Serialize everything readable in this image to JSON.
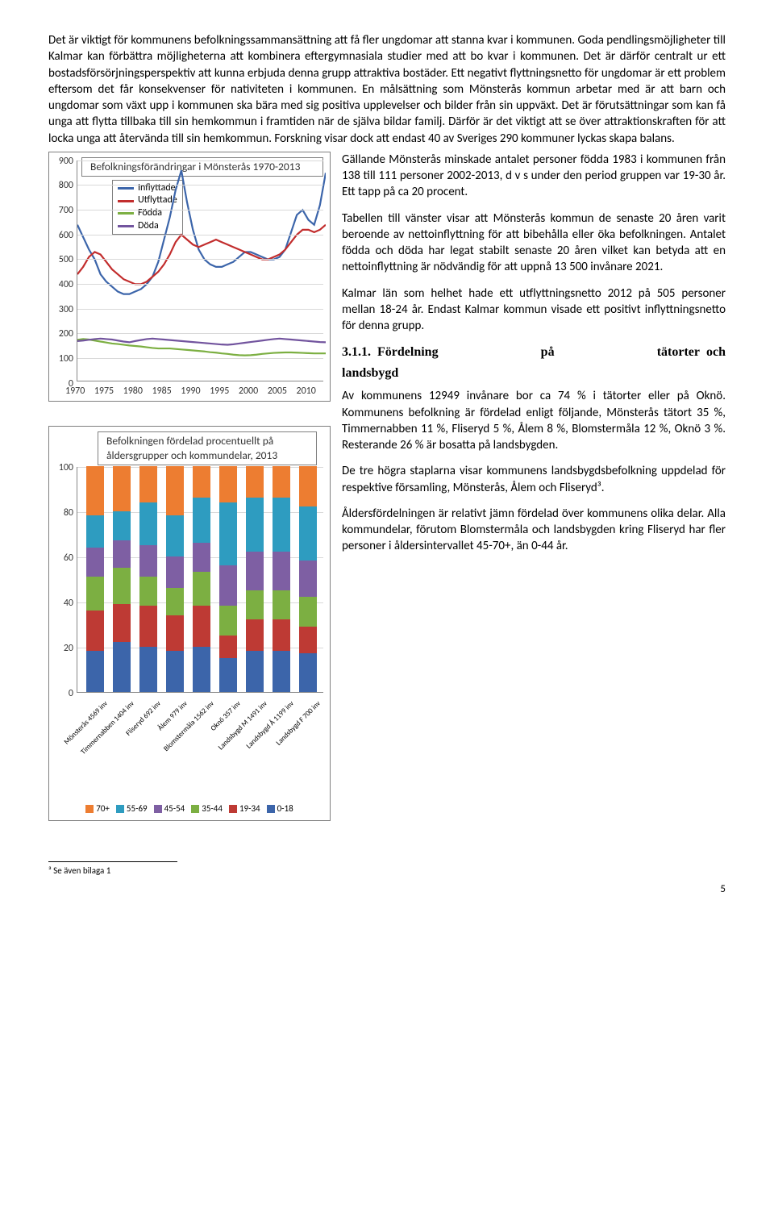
{
  "intro": "Det är viktigt för kommunens befolkningssammansättning att få fler ungdomar att stanna kvar i kommunen. Goda pendlingsmöjligheter till Kalmar kan förbättra möjligheterna att kombinera eftergymnasiala studier med att bo kvar i kommunen. Det är därför centralt ur ett bostadsförsörjningsperspektiv att kunna erbjuda denna grupp attraktiva bostäder. Ett negativt flyttningsnetto för ungdomar är ett problem eftersom det får konsekvenser för nativiteten i kommunen. En målsättning som Mönsterås kommun arbetar med är att barn och ungdomar som växt upp i kommunen ska bära med sig positiva upplevelser och bilder från sin uppväxt. Det är förutsättningar som kan få unga att flytta tillbaka till sin hemkommun i framtiden när de själva bildar familj. Därför är det viktigt att se över attraktionskraften för att locka unga att återvända till sin hemkommun. Forskning visar dock att endast 40 av Sveriges 290 kommuner lyckas skapa balans.",
  "right_paras": {
    "p1": "Gällande Mönsterås minskade antalet personer födda 1983 i kommunen från 138 till 111 personer 2002-2013, d v s under den period gruppen var 19-30 år. Ett tapp på ca 20 procent.",
    "p2": "Tabellen till vänster visar att Mönsterås kommun de senaste 20 åren varit beroende av nettoinflyttning för att bibehålla eller öka befolkningen. Antalet födda och döda har legat stabilt senaste 20 åren vilket kan betyda att en nettoinflyttning är nödvändig för att uppnå 13 500 invånare 2021.",
    "p3": "Kalmar län som helhet hade ett utflyttningsnetto 2012 på 505 personer mellan 18-24 år. Endast Kalmar kommun visade ett positivt inflyttningsnetto för denna grupp.",
    "heading_no": "3.1.1.",
    "heading_l": "Fördelning",
    "heading_m": "på",
    "heading_r1": "tätorter",
    "heading_r2": "och",
    "heading_lands": "landsbygd",
    "p4": "Av kommunens 12949 invånare bor ca 74 % i tätorter eller på Oknö. Kommunens befolkning är fördelad enligt följande, Mönsterås tätort 35 %, Timmernabben 11 %, Fliseryd 5 %, Ålem 8 %, Blomstermåla 12 %, Oknö 3 %. Resterande 26 % är bosatta på landsbygden.",
    "p5": "De tre högra staplarna visar kommunens landsbygdsbefolkning uppdelad för respektive församling, Mönsterås, Ålem och Fliseryd³.",
    "p6": "Åldersfördelningen är relativt jämn fördelad över kommunens olika delar. Alla kommundelar, förutom Blomstermåla och landsbygden kring Fliseryd har fler personer i åldersintervallet 45-70+, än 0-44 år."
  },
  "chart1": {
    "title": "Befolkningsförändringar i Mönsterås 1970-2013",
    "legend": [
      "Inflyttade",
      "Utflyttade",
      "Födda",
      "Döda"
    ],
    "colors": [
      "#3c65aa",
      "#c22d2d",
      "#7caf42",
      "#72549e"
    ],
    "ylim": [
      0,
      900
    ],
    "ytick_step": 100,
    "xticks": [
      "1970",
      "1975",
      "1980",
      "1985",
      "1990",
      "1995",
      "2000",
      "2005",
      "2010"
    ],
    "grid_color": "#d9d9d9",
    "background_color": "#ffffff",
    "series": {
      "inflyttade": [
        640,
        590,
        540,
        500,
        440,
        410,
        390,
        370,
        360,
        360,
        370,
        380,
        400,
        430,
        490,
        580,
        670,
        780,
        860,
        730,
        620,
        540,
        500,
        480,
        470,
        470,
        480,
        490,
        510,
        530,
        530,
        520,
        510,
        500,
        500,
        510,
        540,
        610,
        680,
        700,
        660,
        640,
        720,
        850
      ],
      "utflyttade": [
        440,
        470,
        510,
        530,
        520,
        490,
        460,
        440,
        420,
        410,
        400,
        400,
        410,
        430,
        450,
        480,
        520,
        570,
        600,
        580,
        560,
        550,
        560,
        570,
        580,
        570,
        560,
        550,
        540,
        530,
        520,
        510,
        500,
        500,
        510,
        520,
        540,
        570,
        600,
        620,
        620,
        610,
        620,
        640
      ],
      "fodda": [
        175,
        178,
        176,
        172,
        168,
        164,
        160,
        158,
        155,
        152,
        150,
        148,
        145,
        142,
        140,
        140,
        140,
        138,
        136,
        134,
        132,
        130,
        128,
        125,
        123,
        120,
        118,
        115,
        113,
        112,
        113,
        115,
        118,
        120,
        122,
        123,
        124,
        124,
        123,
        122,
        121,
        120,
        120,
        120
      ],
      "doda": [
        170,
        172,
        175,
        178,
        180,
        178,
        176,
        172,
        168,
        165,
        170,
        174,
        178,
        180,
        178,
        176,
        174,
        172,
        170,
        168,
        166,
        164,
        162,
        160,
        158,
        156,
        155,
        157,
        160,
        163,
        166,
        169,
        172,
        175,
        178,
        180,
        178,
        176,
        174,
        172,
        170,
        168,
        166,
        165
      ]
    }
  },
  "chart2": {
    "title": "Befolkningen fördelad  procentuellt på åldersgrupper och kommundelar, 2013",
    "ylim": [
      0,
      100
    ],
    "ytick_step": 20,
    "categories": [
      "Mönsterås 4569 inv",
      "Timmernabben 1404 inv",
      "Fliseryd 692 inv",
      "Ålem 979 inv",
      "Blomstermåla 1562 inv",
      "Oknö 357 inv",
      "Landsbygd M 1491 inv",
      "Landsbygd Å 1199 inv",
      "Landsbygd F 700 inv"
    ],
    "legend": [
      "70+",
      "55-69",
      "45-54",
      "35-44",
      "19-34",
      "0-18"
    ],
    "colors": {
      "70+": "#ed7d31",
      "55-69": "#2e9cc0",
      "45-54": "#7e5fa3",
      "35-44": "#7caf42",
      "19-34": "#be3a34",
      "0-18": "#3c65aa"
    },
    "stacks": [
      [
        22,
        14,
        13,
        15,
        18,
        18
      ],
      [
        20,
        13,
        12,
        16,
        17,
        22
      ],
      [
        16,
        19,
        14,
        13,
        18,
        20
      ],
      [
        22,
        18,
        14,
        12,
        16,
        18
      ],
      [
        14,
        20,
        13,
        15,
        18,
        20
      ],
      [
        16,
        28,
        18,
        13,
        10,
        15
      ],
      [
        14,
        24,
        17,
        13,
        14,
        18
      ],
      [
        14,
        24,
        17,
        13,
        14,
        18
      ],
      [
        18,
        24,
        16,
        13,
        12,
        17
      ]
    ]
  },
  "footnote": "³ Se även bilaga 1",
  "page": "5"
}
